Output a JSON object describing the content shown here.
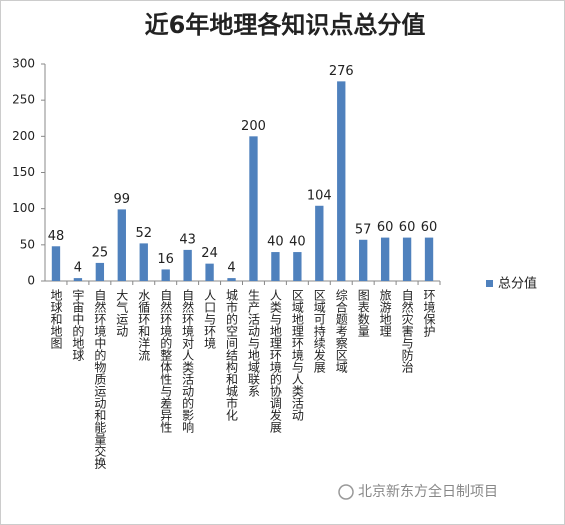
{
  "chart_data": {
    "type": "bar",
    "title": "近6年地理各知识点总分值",
    "categories": [
      "地球和地图",
      "宇宙中的地球",
      "自然环境中的物质运动和能量交换",
      "大气运动",
      "水循环和洋流",
      "自然环境的整体性与差异性",
      "自然环境对人类活动的影响",
      "人口与环境",
      "城市的空间结构和城市化",
      "生产活动与地域联系",
      "人类与地理环境的协调发展",
      "区域地理环境与人类活动",
      "区域可持续发展",
      "综合题考察区域",
      "图表数量",
      "旅游地理",
      "自然灾害与防治",
      "环境保护"
    ],
    "series": [
      {
        "name": "总分值",
        "color": "#4f81bd",
        "values": [
          48,
          4,
          25,
          99,
          52,
          16,
          43,
          24,
          4,
          200,
          40,
          40,
          104,
          276,
          57,
          60,
          60,
          60
        ]
      }
    ],
    "ylim": [
      0,
      300
    ],
    "yticks": [
      0,
      50,
      100,
      150,
      200,
      250,
      300
    ],
    "grid": false,
    "legend": "right"
  },
  "watermark": "北京新东方全日制项目"
}
